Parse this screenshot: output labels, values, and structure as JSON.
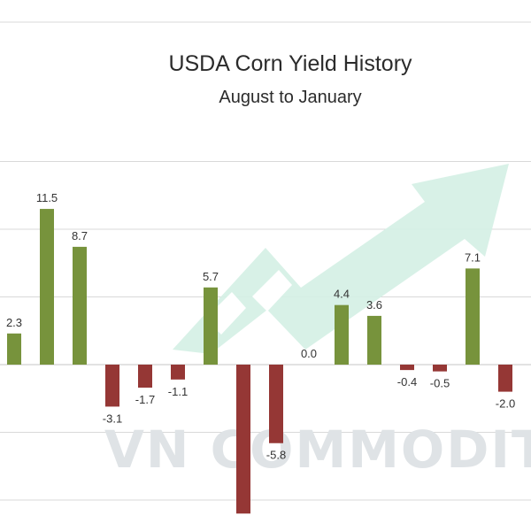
{
  "chart_data": {
    "type": "bar",
    "title": "USDA Corn Yield History",
    "subtitle": "August to January",
    "xlabel": "",
    "ylabel": "",
    "ylim": [
      -10,
      15
    ],
    "grid": true,
    "values": [
      2.3,
      11.5,
      8.7,
      -3.1,
      -1.7,
      -1.1,
      5.7,
      -11.0,
      -5.8,
      0.0,
      4.4,
      3.6,
      -0.4,
      -0.5,
      7.1,
      -2.0
    ],
    "labels": [
      "2.3",
      "11.5",
      "8.7",
      "-3.1",
      "-1.7",
      "-1.1",
      "5.7",
      "",
      "-5.8",
      "0.0",
      "4.4",
      "3.6",
      "-0.4",
      "-0.5",
      "7.1",
      "-2.0"
    ],
    "colors": {
      "positive": "#77933c",
      "negative": "#953735"
    }
  },
  "watermark": {
    "text": "VN COMMODITIES",
    "arrow_color": "#d4efe4"
  }
}
